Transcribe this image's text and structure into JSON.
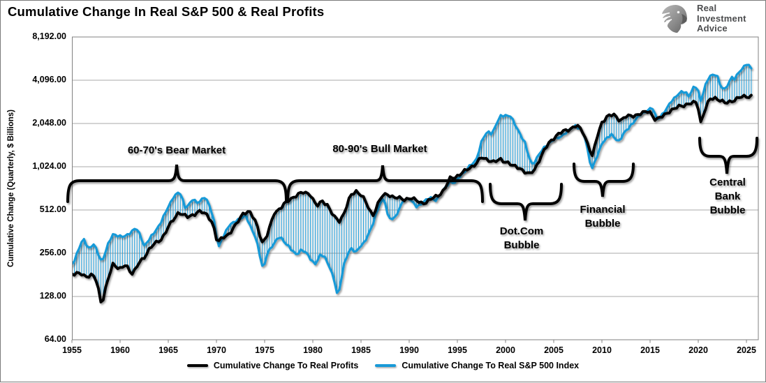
{
  "title": "Cumulative Change In Real S&P 500 & Real Profits",
  "logo": {
    "name": "Real Investment Advice",
    "lines": [
      "Real",
      "Investment",
      "Advice"
    ]
  },
  "y_axis": {
    "title": "Cumulative Change (Quarterly, $ Billions)",
    "ticks": [
      {
        "label": "8,192.00",
        "value": 8192
      },
      {
        "label": "4,096.00",
        "value": 4096
      },
      {
        "label": "2,048.00",
        "value": 2048
      },
      {
        "label": "1,024.00",
        "value": 1024
      },
      {
        "label": "512.00",
        "value": 512
      },
      {
        "label": "256.00",
        "value": 256
      },
      {
        "label": "128.00",
        "value": 128
      },
      {
        "label": "64.00",
        "value": 64
      }
    ]
  },
  "x_axis": {
    "ticks": [
      {
        "label": "1955",
        "year": 1955
      },
      {
        "label": "1960",
        "year": 1960
      },
      {
        "label": "1965",
        "year": 1965
      },
      {
        "label": "1970",
        "year": 1970
      },
      {
        "label": "1975",
        "year": 1975
      },
      {
        "label": "1980",
        "year": 1980
      },
      {
        "label": "1985",
        "year": 1985
      },
      {
        "label": "1990",
        "year": 1990
      },
      {
        "label": "1995",
        "year": 1995
      },
      {
        "label": "2000",
        "year": 2000
      },
      {
        "label": "2005",
        "year": 2005
      },
      {
        "label": "2010",
        "year": 2010
      },
      {
        "label": "2015",
        "year": 2015
      },
      {
        "label": "2020",
        "year": 2020
      },
      {
        "label": "2025",
        "year": 2025
      }
    ]
  },
  "legend": {
    "items": [
      {
        "label": "Cumulative Change To Real Profits",
        "color": "#000000"
      },
      {
        "label": "Cumulative Change To Real S&P 500 Index",
        "color": "#189AD8"
      }
    ]
  },
  "annotations": [
    {
      "id": "bear",
      "label": "60-70's Bear Market"
    },
    {
      "id": "bull",
      "label": "80-90's Bull Market"
    },
    {
      "id": "dotcom",
      "label": "Dot.Com Bubble"
    },
    {
      "id": "financial",
      "label": "Financial Bubble"
    },
    {
      "id": "central",
      "label": "Central Bank Bubble"
    }
  ],
  "colors": {
    "profits": "#000000",
    "sp500": "#189AD8",
    "hatch": "#189AD8",
    "grid": "#A9A9A9",
    "frame": "#808080"
  },
  "chart_data": {
    "type": "line",
    "title": "Cumulative Change In Real S&P 500 & Real Profits",
    "ylabel": "Cumulative Change (Quarterly, $ Billions)",
    "y_scale": "log2",
    "ylim": [
      64,
      8192
    ],
    "xlim": [
      1954.7,
      2025.6
    ],
    "y_ticks": [
      64,
      128,
      256,
      512,
      1024,
      2048,
      4096,
      8192
    ],
    "x_ticks": [
      1955,
      1960,
      1965,
      1970,
      1975,
      1980,
      1985,
      1990,
      1995,
      2000,
      2005,
      2010,
      2015,
      2020,
      2025
    ],
    "grid": "horizontal",
    "legend_position": "bottom",
    "fill_between": "vertical-hatch",
    "series": [
      {
        "name": "Cumulative Change To Real Profits",
        "color": "#000000",
        "points": [
          [
            1954.7,
            186
          ],
          [
            1955.3,
            180
          ],
          [
            1955.8,
            190
          ],
          [
            1956.3,
            178
          ],
          [
            1956.8,
            174
          ],
          [
            1957.2,
            182
          ],
          [
            1957.6,
            163
          ],
          [
            1958.1,
            110
          ],
          [
            1958.7,
            165
          ],
          [
            1959.3,
            222
          ],
          [
            1959.9,
            196
          ],
          [
            1960.6,
            212
          ],
          [
            1961.3,
            184
          ],
          [
            1961.9,
            215
          ],
          [
            1962.5,
            240
          ],
          [
            1963.1,
            280
          ],
          [
            1963.7,
            300
          ],
          [
            1964.3,
            322
          ],
          [
            1965.0,
            390
          ],
          [
            1965.7,
            452
          ],
          [
            1966.1,
            500
          ],
          [
            1966.5,
            478
          ],
          [
            1967.0,
            455
          ],
          [
            1967.6,
            472
          ],
          [
            1968.1,
            505
          ],
          [
            1968.6,
            490
          ],
          [
            1969.1,
            465
          ],
          [
            1969.6,
            420
          ],
          [
            1970.1,
            302
          ],
          [
            1970.7,
            330
          ],
          [
            1971.3,
            350
          ],
          [
            1972.0,
            400
          ],
          [
            1972.8,
            492
          ],
          [
            1973.4,
            500
          ],
          [
            1974.1,
            420
          ],
          [
            1974.8,
            300
          ],
          [
            1975.3,
            345
          ],
          [
            1976.0,
            490
          ],
          [
            1976.8,
            540
          ],
          [
            1977.5,
            600
          ],
          [
            1978.3,
            650
          ],
          [
            1979.0,
            676
          ],
          [
            1979.7,
            668
          ],
          [
            1980.4,
            540
          ],
          [
            1981.0,
            592
          ],
          [
            1981.5,
            558
          ],
          [
            1982.2,
            455
          ],
          [
            1982.8,
            428
          ],
          [
            1983.3,
            500
          ],
          [
            1983.9,
            640
          ],
          [
            1984.5,
            694
          ],
          [
            1985.1,
            650
          ],
          [
            1985.7,
            540
          ],
          [
            1986.2,
            465
          ],
          [
            1986.7,
            560
          ],
          [
            1987.2,
            640
          ],
          [
            1987.8,
            660
          ],
          [
            1988.4,
            630
          ],
          [
            1989.0,
            615
          ],
          [
            1989.5,
            605
          ],
          [
            1990.1,
            625
          ],
          [
            1990.6,
            600
          ],
          [
            1991.2,
            575
          ],
          [
            1991.8,
            580
          ],
          [
            1992.4,
            615
          ],
          [
            1993.0,
            650
          ],
          [
            1993.6,
            700
          ],
          [
            1994.3,
            860
          ],
          [
            1994.8,
            870
          ],
          [
            1995.5,
            925
          ],
          [
            1996.2,
            1000
          ],
          [
            1996.9,
            1070
          ],
          [
            1997.5,
            1180
          ],
          [
            1998.2,
            1150
          ],
          [
            1998.8,
            1100
          ],
          [
            1999.5,
            1150
          ],
          [
            2000.2,
            1100
          ],
          [
            2000.8,
            1030
          ],
          [
            2001.5,
            1005
          ],
          [
            2002.1,
            930
          ],
          [
            2002.5,
            905
          ],
          [
            2003.0,
            980
          ],
          [
            2003.8,
            1250
          ],
          [
            2004.5,
            1500
          ],
          [
            2005.2,
            1680
          ],
          [
            2006.0,
            1800
          ],
          [
            2006.8,
            1900
          ],
          [
            2007.4,
            1980
          ],
          [
            2008.0,
            1800
          ],
          [
            2008.6,
            1450
          ],
          [
            2009.0,
            1200
          ],
          [
            2009.5,
            1650
          ],
          [
            2010.0,
            2100
          ],
          [
            2010.6,
            2300
          ],
          [
            2011.3,
            2350
          ],
          [
            2011.9,
            2150
          ],
          [
            2012.5,
            2280
          ],
          [
            2013.1,
            2320
          ],
          [
            2013.7,
            2360
          ],
          [
            2014.3,
            2420
          ],
          [
            2014.9,
            2520
          ],
          [
            2015.6,
            2150
          ],
          [
            2016.2,
            2280
          ],
          [
            2016.9,
            2480
          ],
          [
            2017.5,
            2570
          ],
          [
            2018.1,
            2720
          ],
          [
            2018.7,
            2770
          ],
          [
            2019.3,
            2820
          ],
          [
            2019.9,
            2890
          ],
          [
            2020.25,
            2090
          ],
          [
            2020.7,
            2550
          ],
          [
            2021.2,
            3020
          ],
          [
            2021.8,
            3100
          ],
          [
            2022.3,
            2960
          ],
          [
            2022.8,
            2820
          ],
          [
            2023.3,
            2910
          ],
          [
            2023.8,
            3010
          ],
          [
            2024.3,
            3100
          ],
          [
            2024.8,
            3150
          ],
          [
            2025.6,
            3190
          ]
        ]
      },
      {
        "name": "Cumulative Change To Real S&P 500 Index",
        "color": "#189AD8",
        "points": [
          [
            1954.7,
            200
          ],
          [
            1955.2,
            225
          ],
          [
            1955.7,
            275
          ],
          [
            1956.2,
            322
          ],
          [
            1956.7,
            278
          ],
          [
            1957.3,
            296
          ],
          [
            1957.7,
            255
          ],
          [
            1958.1,
            222
          ],
          [
            1958.7,
            290
          ],
          [
            1959.3,
            350
          ],
          [
            1959.8,
            340
          ],
          [
            1960.4,
            330
          ],
          [
            1961.0,
            355
          ],
          [
            1961.6,
            385
          ],
          [
            1962.1,
            340
          ],
          [
            1962.5,
            290
          ],
          [
            1963.0,
            318
          ],
          [
            1963.6,
            360
          ],
          [
            1964.3,
            430
          ],
          [
            1964.9,
            520
          ],
          [
            1965.5,
            630
          ],
          [
            1966.0,
            672
          ],
          [
            1966.3,
            655
          ],
          [
            1966.8,
            528
          ],
          [
            1967.5,
            600
          ],
          [
            1968.1,
            575
          ],
          [
            1968.7,
            635
          ],
          [
            1969.3,
            548
          ],
          [
            1969.8,
            420
          ],
          [
            1970.2,
            278
          ],
          [
            1970.8,
            345
          ],
          [
            1971.3,
            405
          ],
          [
            1971.9,
            420
          ],
          [
            1972.5,
            450
          ],
          [
            1973.0,
            470
          ],
          [
            1973.6,
            380
          ],
          [
            1974.1,
            330
          ],
          [
            1974.85,
            192
          ],
          [
            1975.3,
            262
          ],
          [
            1976.0,
            300
          ],
          [
            1976.6,
            336
          ],
          [
            1977.2,
            300
          ],
          [
            1977.8,
            268
          ],
          [
            1978.3,
            252
          ],
          [
            1978.8,
            270
          ],
          [
            1979.4,
            254
          ],
          [
            1980.0,
            224
          ],
          [
            1980.3,
            214
          ],
          [
            1980.8,
            250
          ],
          [
            1981.2,
            246
          ],
          [
            1981.8,
            200
          ],
          [
            1982.3,
            158
          ],
          [
            1982.6,
            126
          ],
          [
            1983.2,
            210
          ],
          [
            1983.9,
            280
          ],
          [
            1984.5,
            262
          ],
          [
            1985.3,
            302
          ],
          [
            1986.2,
            400
          ],
          [
            1986.9,
            560
          ],
          [
            1987.4,
            630
          ],
          [
            1987.8,
            450
          ],
          [
            1988.4,
            445
          ],
          [
            1989.0,
            520
          ],
          [
            1989.4,
            600
          ],
          [
            1990.0,
            620
          ],
          [
            1990.8,
            532
          ],
          [
            1991.5,
            590
          ],
          [
            1992.2,
            620
          ],
          [
            1992.8,
            600
          ],
          [
            1993.4,
            680
          ],
          [
            1994.3,
            820
          ],
          [
            1994.7,
            780
          ],
          [
            1995.4,
            900
          ],
          [
            1996.2,
            1020
          ],
          [
            1996.9,
            1120
          ],
          [
            1997.6,
            1600
          ],
          [
            1998.2,
            1800
          ],
          [
            1998.6,
            1740
          ],
          [
            1999.0,
            2000
          ],
          [
            1999.5,
            2300
          ],
          [
            2000.0,
            2350
          ],
          [
            2000.5,
            2300
          ],
          [
            2001.0,
            2000
          ],
          [
            2001.5,
            1750
          ],
          [
            2002.0,
            1500
          ],
          [
            2002.4,
            1200
          ],
          [
            2002.8,
            1060
          ],
          [
            2003.5,
            1250
          ],
          [
            2004.2,
            1450
          ],
          [
            2005.0,
            1570
          ],
          [
            2005.8,
            1680
          ],
          [
            2006.5,
            1800
          ],
          [
            2007.2,
            2000
          ],
          [
            2007.8,
            1850
          ],
          [
            2008.3,
            1600
          ],
          [
            2008.7,
            1150
          ],
          [
            2009.0,
            1000
          ],
          [
            2009.6,
            1250
          ],
          [
            2010.0,
            1500
          ],
          [
            2010.4,
            1600
          ],
          [
            2011.0,
            1700
          ],
          [
            2011.8,
            1540
          ],
          [
            2012.3,
            1750
          ],
          [
            2013.0,
            2000
          ],
          [
            2013.6,
            2200
          ],
          [
            2014.1,
            2400
          ],
          [
            2014.8,
            2550
          ],
          [
            2015.3,
            2600
          ],
          [
            2015.7,
            2200
          ],
          [
            2016.1,
            2300
          ],
          [
            2016.6,
            2500
          ],
          [
            2017.2,
            2960
          ],
          [
            2017.8,
            3200
          ],
          [
            2018.3,
            3400
          ],
          [
            2018.7,
            3420
          ],
          [
            2019.0,
            3170
          ],
          [
            2019.5,
            3600
          ],
          [
            2019.9,
            3700
          ],
          [
            2020.25,
            2950
          ],
          [
            2020.7,
            3700
          ],
          [
            2021.2,
            4400
          ],
          [
            2021.9,
            4560
          ],
          [
            2022.3,
            3700
          ],
          [
            2022.7,
            3500
          ],
          [
            2023.1,
            3900
          ],
          [
            2023.5,
            4300
          ],
          [
            2023.8,
            4100
          ],
          [
            2024.2,
            4700
          ],
          [
            2024.6,
            4950
          ],
          [
            2024.9,
            5350
          ],
          [
            2025.6,
            4900
          ]
        ]
      }
    ]
  }
}
